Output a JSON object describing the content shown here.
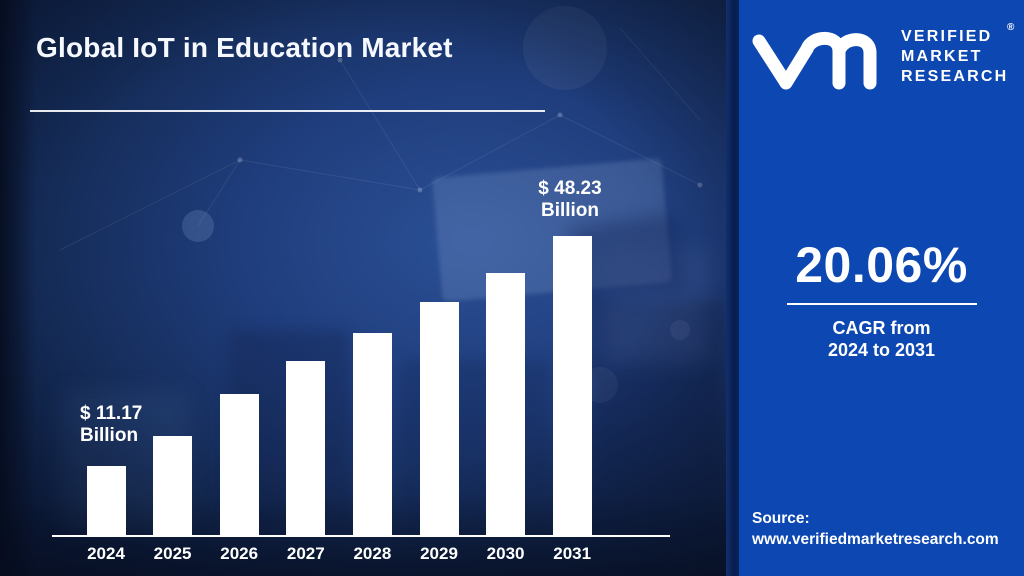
{
  "title": "Global IoT in Education Market",
  "chart_data": {
    "type": "bar",
    "title": "Global IoT in Education Market",
    "unit": "USD Billion",
    "categories": [
      "2024",
      "2025",
      "2026",
      "2027",
      "2028",
      "2029",
      "2030",
      "2031"
    ],
    "values": [
      11.17,
      16.0,
      22.7,
      28.1,
      32.5,
      37.5,
      42.2,
      48.23
    ],
    "ylim": [
      0,
      50
    ],
    "grid": false,
    "legend": "none",
    "bar_color": "#ffffff",
    "axis_color": "#ffffff",
    "annotations": [
      {
        "category": "2024",
        "line1": "$ 11.17",
        "line2": "Billion"
      },
      {
        "category": "2031",
        "line1": "$ 48.23",
        "line2": "Billion"
      }
    ]
  },
  "sidebar": {
    "brand": {
      "line1": "VERIFIED",
      "line2": "MARKET",
      "line3": "RESEARCH",
      "registered": "®",
      "logo_icon": "vmr-monogram-icon"
    },
    "cagr": {
      "value": "20.06%",
      "caption_line1": "CAGR from",
      "caption_line2": "2024 to 2031"
    },
    "source": {
      "label": "Source:",
      "url": "www.verifiedmarketresearch.com"
    }
  },
  "colors": {
    "sidebar_blue": "#0c47b2",
    "background_navy": "#1f3d7c",
    "bar_white": "#ffffff",
    "text_white": "#ffffff"
  }
}
